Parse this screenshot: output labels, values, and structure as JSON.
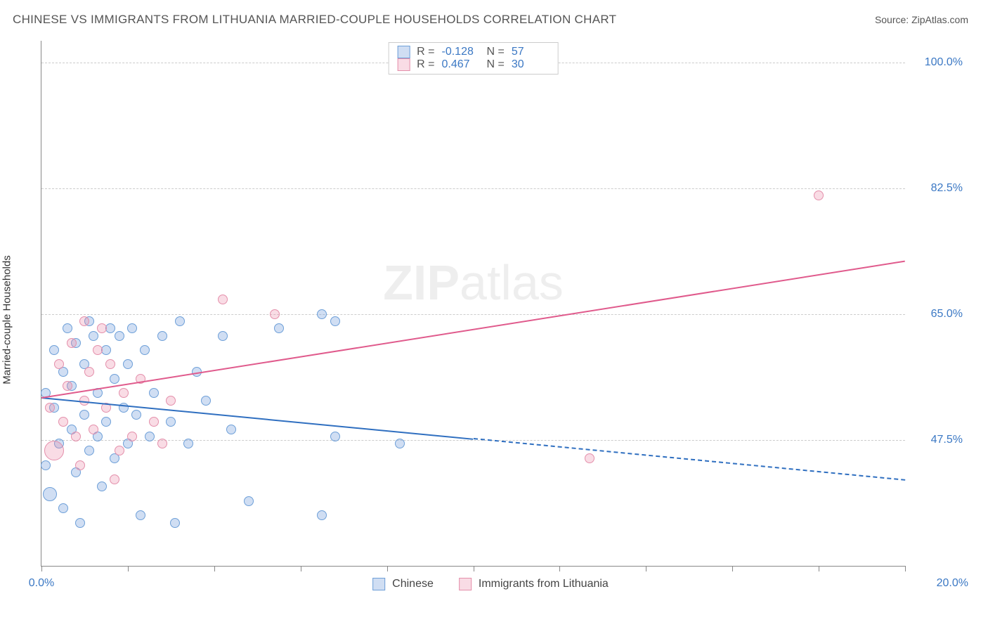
{
  "header": {
    "title": "CHINESE VS IMMIGRANTS FROM LITHUANIA MARRIED-COUPLE HOUSEHOLDS CORRELATION CHART",
    "source_prefix": "Source: ",
    "source_name": "ZipAtlas.com"
  },
  "chart": {
    "type": "scatter",
    "y_label": "Married-couple Households",
    "xlim": [
      0.0,
      20.0
    ],
    "ylim": [
      30.0,
      103.0
    ],
    "x_ticks_pct": [
      0.0,
      10.0,
      20.0,
      30.0,
      40.0,
      50.0,
      60.0,
      70.0,
      80.0,
      90.0,
      100.0
    ],
    "x_tick_labels": {
      "left": "0.0%",
      "right": "20.0%"
    },
    "y_gridlines": [
      47.5,
      65.0,
      82.5,
      100.0
    ],
    "y_tick_labels": [
      "47.5%",
      "65.0%",
      "82.5%",
      "100.0%"
    ],
    "background_color": "#ffffff",
    "grid_color": "#cccccc",
    "axis_color": "#888888",
    "tick_label_color": "#3b78c4",
    "watermark": "ZIPatlas",
    "series": [
      {
        "name": "Chinese",
        "fill": "rgba(120,160,220,0.35)",
        "stroke": "#6d9fd8",
        "line_color": "#2f6fc0",
        "R": "-0.128",
        "N": "57",
        "trend": {
          "x0": 0.0,
          "y0": 53.5,
          "x1": 20.0,
          "y1": 42.0,
          "solid_until_x": 10.0
        },
        "points": [
          {
            "x": 0.1,
            "y": 44,
            "r": 7
          },
          {
            "x": 0.1,
            "y": 54,
            "r": 7
          },
          {
            "x": 0.2,
            "y": 40,
            "r": 10
          },
          {
            "x": 0.3,
            "y": 52,
            "r": 7
          },
          {
            "x": 0.3,
            "y": 60,
            "r": 7
          },
          {
            "x": 0.4,
            "y": 47,
            "r": 7
          },
          {
            "x": 0.5,
            "y": 57,
            "r": 7
          },
          {
            "x": 0.5,
            "y": 38,
            "r": 7
          },
          {
            "x": 0.6,
            "y": 63,
            "r": 7
          },
          {
            "x": 0.7,
            "y": 49,
            "r": 7
          },
          {
            "x": 0.7,
            "y": 55,
            "r": 7
          },
          {
            "x": 0.8,
            "y": 61,
            "r": 7
          },
          {
            "x": 0.8,
            "y": 43,
            "r": 7
          },
          {
            "x": 0.9,
            "y": 36,
            "r": 7
          },
          {
            "x": 1.0,
            "y": 58,
            "r": 7
          },
          {
            "x": 1.0,
            "y": 51,
            "r": 7
          },
          {
            "x": 1.1,
            "y": 64,
            "r": 7
          },
          {
            "x": 1.1,
            "y": 46,
            "r": 7
          },
          {
            "x": 1.2,
            "y": 62,
            "r": 7
          },
          {
            "x": 1.3,
            "y": 54,
            "r": 7
          },
          {
            "x": 1.3,
            "y": 48,
            "r": 7
          },
          {
            "x": 1.4,
            "y": 41,
            "r": 7
          },
          {
            "x": 1.5,
            "y": 60,
            "r": 7
          },
          {
            "x": 1.5,
            "y": 50,
            "r": 7
          },
          {
            "x": 1.6,
            "y": 63,
            "r": 7
          },
          {
            "x": 1.7,
            "y": 45,
            "r": 7
          },
          {
            "x": 1.7,
            "y": 56,
            "r": 7
          },
          {
            "x": 1.8,
            "y": 62,
            "r": 7
          },
          {
            "x": 1.9,
            "y": 52,
            "r": 7
          },
          {
            "x": 2.0,
            "y": 47,
            "r": 7
          },
          {
            "x": 2.0,
            "y": 58,
            "r": 7
          },
          {
            "x": 2.1,
            "y": 63,
            "r": 7
          },
          {
            "x": 2.2,
            "y": 51,
            "r": 7
          },
          {
            "x": 2.3,
            "y": 37,
            "r": 7
          },
          {
            "x": 2.4,
            "y": 60,
            "r": 7
          },
          {
            "x": 2.5,
            "y": 48,
            "r": 7
          },
          {
            "x": 2.6,
            "y": 54,
            "r": 7
          },
          {
            "x": 2.8,
            "y": 62,
            "r": 7
          },
          {
            "x": 3.0,
            "y": 50,
            "r": 7
          },
          {
            "x": 3.1,
            "y": 36,
            "r": 7
          },
          {
            "x": 3.2,
            "y": 64,
            "r": 7
          },
          {
            "x": 3.4,
            "y": 47,
            "r": 7
          },
          {
            "x": 3.6,
            "y": 57,
            "r": 7
          },
          {
            "x": 3.8,
            "y": 53,
            "r": 7
          },
          {
            "x": 4.2,
            "y": 62,
            "r": 7
          },
          {
            "x": 4.4,
            "y": 49,
            "r": 7
          },
          {
            "x": 4.8,
            "y": 39,
            "r": 7
          },
          {
            "x": 5.5,
            "y": 63,
            "r": 7
          },
          {
            "x": 6.5,
            "y": 65,
            "r": 7
          },
          {
            "x": 6.5,
            "y": 37,
            "r": 7
          },
          {
            "x": 6.8,
            "y": 64,
            "r": 7
          },
          {
            "x": 6.8,
            "y": 48,
            "r": 7
          },
          {
            "x": 8.3,
            "y": 47,
            "r": 7
          }
        ]
      },
      {
        "name": "Immigrants from Lithuania",
        "fill": "rgba(235,140,170,0.30)",
        "stroke": "#e48fab",
        "line_color": "#e05a8c",
        "R": "0.467",
        "N": "30",
        "trend": {
          "x0": 0.0,
          "y0": 53.5,
          "x1": 20.0,
          "y1": 72.5,
          "solid_until_x": 20.0
        },
        "points": [
          {
            "x": 0.2,
            "y": 52,
            "r": 7
          },
          {
            "x": 0.3,
            "y": 46,
            "r": 14
          },
          {
            "x": 0.4,
            "y": 58,
            "r": 7
          },
          {
            "x": 0.5,
            "y": 50,
            "r": 7
          },
          {
            "x": 0.6,
            "y": 55,
            "r": 7
          },
          {
            "x": 0.7,
            "y": 61,
            "r": 7
          },
          {
            "x": 0.8,
            "y": 48,
            "r": 7
          },
          {
            "x": 0.9,
            "y": 44,
            "r": 7
          },
          {
            "x": 1.0,
            "y": 64,
            "r": 7
          },
          {
            "x": 1.0,
            "y": 53,
            "r": 7
          },
          {
            "x": 1.1,
            "y": 57,
            "r": 7
          },
          {
            "x": 1.2,
            "y": 49,
            "r": 7
          },
          {
            "x": 1.3,
            "y": 60,
            "r": 7
          },
          {
            "x": 1.4,
            "y": 63,
            "r": 7
          },
          {
            "x": 1.5,
            "y": 52,
            "r": 7
          },
          {
            "x": 1.6,
            "y": 58,
            "r": 7
          },
          {
            "x": 1.7,
            "y": 42,
            "r": 7
          },
          {
            "x": 1.8,
            "y": 46,
            "r": 7
          },
          {
            "x": 1.9,
            "y": 54,
            "r": 7
          },
          {
            "x": 2.1,
            "y": 48,
            "r": 7
          },
          {
            "x": 2.3,
            "y": 56,
            "r": 7
          },
          {
            "x": 2.6,
            "y": 50,
            "r": 7
          },
          {
            "x": 2.8,
            "y": 47,
            "r": 7
          },
          {
            "x": 3.0,
            "y": 53,
            "r": 7
          },
          {
            "x": 4.2,
            "y": 67,
            "r": 7
          },
          {
            "x": 5.4,
            "y": 65,
            "r": 7
          },
          {
            "x": 12.7,
            "y": 45,
            "r": 7
          },
          {
            "x": 18.0,
            "y": 81.5,
            "r": 7
          }
        ]
      }
    ],
    "legend_top": [
      {
        "swatch_fill": "rgba(120,160,220,0.35)",
        "swatch_stroke": "#6d9fd8",
        "R_label": "R =",
        "R": "-0.128",
        "N_label": "N =",
        "N": "57"
      },
      {
        "swatch_fill": "rgba(235,140,170,0.30)",
        "swatch_stroke": "#e48fab",
        "R_label": "R =",
        "R": "0.467",
        "N_label": "N =",
        "N": "30"
      }
    ],
    "legend_bottom": [
      {
        "swatch_fill": "rgba(120,160,220,0.35)",
        "swatch_stroke": "#6d9fd8",
        "label": "Chinese"
      },
      {
        "swatch_fill": "rgba(235,140,170,0.30)",
        "swatch_stroke": "#e48fab",
        "label": "Immigrants from Lithuania"
      }
    ]
  }
}
